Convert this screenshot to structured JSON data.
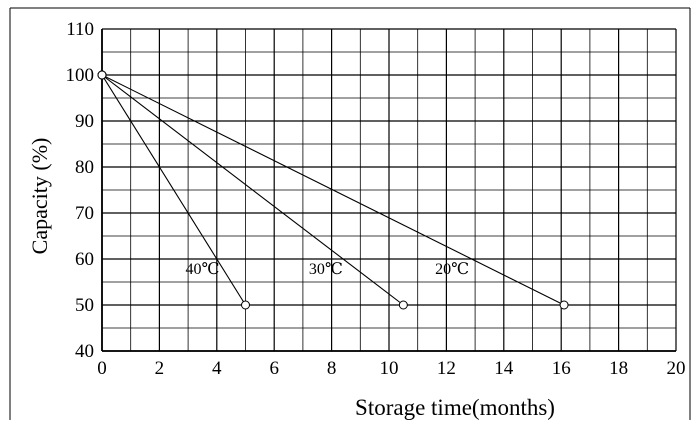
{
  "chart_data": {
    "type": "line",
    "title": "",
    "xlabel": "Storage time(months)",
    "ylabel": "Capacity (%)",
    "xlim": [
      0,
      20
    ],
    "ylim": [
      40,
      110
    ],
    "x_ticks": [
      0,
      2,
      4,
      6,
      8,
      10,
      12,
      14,
      16,
      18,
      20
    ],
    "y_ticks": [
      40,
      50,
      60,
      70,
      80,
      90,
      100,
      110
    ],
    "grid": true,
    "legend": "none",
    "colors": {
      "line": "#000000",
      "grid": "#000000",
      "background": "#ffffff"
    },
    "series": [
      {
        "name": "40℃",
        "x": [
          0,
          5
        ],
        "y": [
          100,
          50
        ],
        "label_at": [
          3.5,
          58
        ]
      },
      {
        "name": "30℃",
        "x": [
          0,
          10.5
        ],
        "y": [
          100,
          50
        ],
        "label_at": [
          7.8,
          58
        ]
      },
      {
        "name": "20℃",
        "x": [
          0,
          16.1
        ],
        "y": [
          100,
          50
        ],
        "label_at": [
          12.2,
          58
        ]
      }
    ]
  }
}
